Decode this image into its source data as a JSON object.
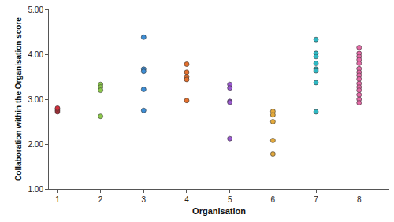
{
  "chart_data": {
    "type": "scatter",
    "x_label": "Organisation",
    "y_label": "Collaboration within the Organisation score",
    "xlim": [
      0.8,
      8.7
    ],
    "xticks": [
      1,
      2,
      3,
      4,
      5,
      6,
      7,
      8
    ],
    "ylim": [
      1,
      5
    ],
    "yticks": [
      {
        "value": 1,
        "label": "1.00"
      },
      {
        "value": 2,
        "label": "2.00"
      },
      {
        "value": 3,
        "label": "3.00"
      },
      {
        "value": 4,
        "label": "4.00"
      },
      {
        "value": 5,
        "label": "5.00"
      }
    ],
    "grid": false,
    "marker": "circle",
    "series": [
      {
        "color": "#d32f3c",
        "x": [
          1,
          1,
          1,
          1
        ],
        "values": [
          2.72,
          2.75,
          2.78,
          2.8
        ]
      },
      {
        "color": "#8cc84b",
        "x": [
          2,
          2,
          2,
          2
        ],
        "values": [
          3.33,
          3.27,
          3.2,
          2.62
        ]
      },
      {
        "color": "#3d8ed6",
        "x": [
          3,
          3,
          3,
          3,
          3
        ],
        "values": [
          4.38,
          3.67,
          3.62,
          3.22,
          2.75
        ]
      },
      {
        "color": "#e5702d",
        "x": [
          4,
          4,
          4,
          4,
          4
        ],
        "values": [
          3.78,
          3.6,
          3.5,
          3.44,
          2.97
        ]
      },
      {
        "color": "#9b5ad0",
        "x": [
          5,
          5,
          5,
          5,
          5
        ],
        "values": [
          3.33,
          3.25,
          2.95,
          2.93,
          2.12
        ]
      },
      {
        "color": "#e3a93c",
        "x": [
          6,
          6,
          6,
          6,
          6
        ],
        "values": [
          2.73,
          2.65,
          2.5,
          2.08,
          1.78
        ]
      },
      {
        "color": "#2fb8c3",
        "x": [
          7,
          7,
          7,
          7,
          7,
          7,
          7,
          7
        ],
        "values": [
          4.33,
          4.02,
          3.95,
          3.8,
          3.67,
          3.63,
          3.37,
          2.72
        ]
      },
      {
        "color": "#e56aa6",
        "x": [
          8,
          8,
          8,
          8,
          8,
          8,
          8,
          8,
          8,
          8,
          8,
          8,
          8,
          8,
          8
        ],
        "values": [
          4.15,
          4.02,
          3.95,
          3.88,
          3.8,
          3.68,
          3.6,
          3.53,
          3.45,
          3.35,
          3.27,
          3.2,
          3.1,
          3.0,
          2.92
        ]
      }
    ]
  }
}
